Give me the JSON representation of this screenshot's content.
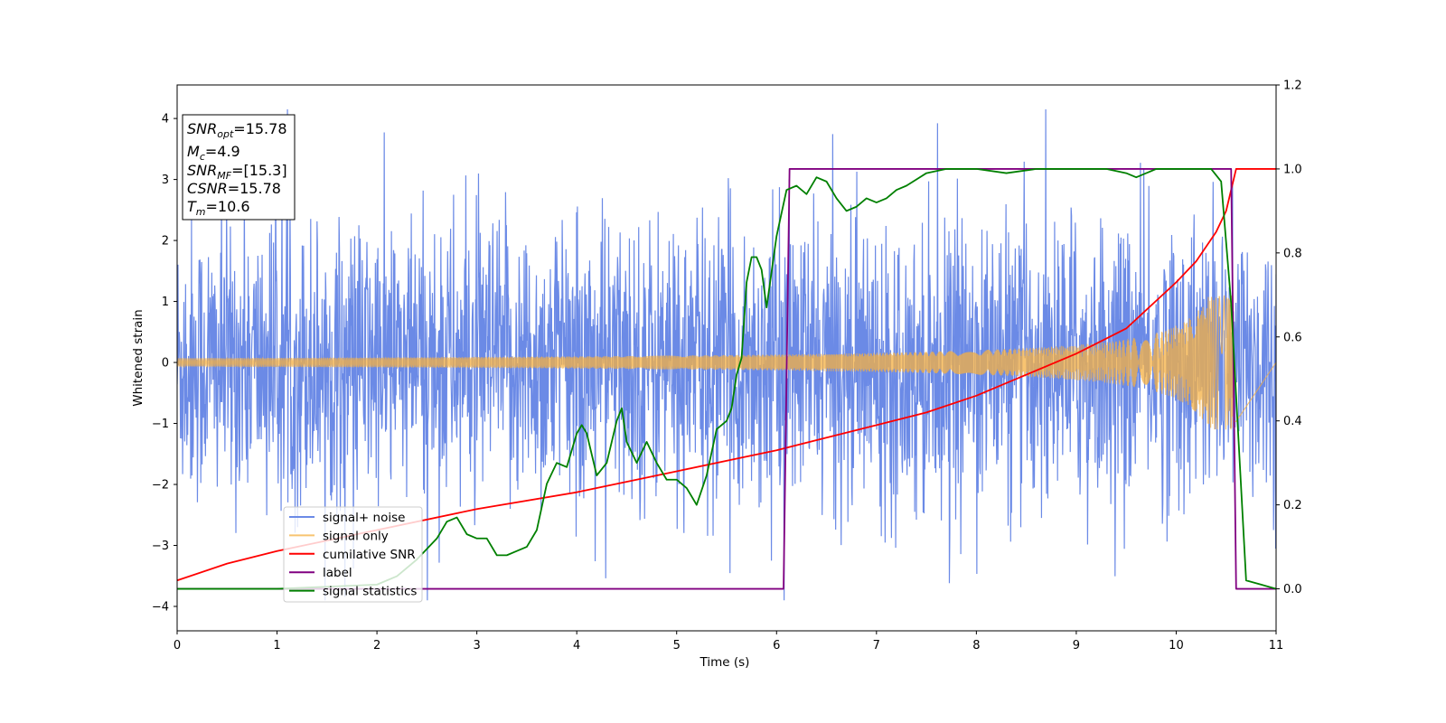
{
  "chart_data": {
    "type": "line",
    "xlabel": "Time (s)",
    "ylabel": "Whitened strain",
    "xlim": [
      0,
      11
    ],
    "ylim_left": [
      -4.4,
      4.55
    ],
    "ylim_right": [
      -0.1,
      1.2
    ],
    "x_ticks": [
      "0",
      "1",
      "2",
      "3",
      "4",
      "5",
      "6",
      "7",
      "8",
      "9",
      "10",
      "11"
    ],
    "y_ticks_left": [
      "−4",
      "−3",
      "−2",
      "−1",
      "0",
      "1",
      "2",
      "3",
      "4"
    ],
    "y_ticks_right": [
      "0.0",
      "0.2",
      "0.4",
      "0.6",
      "0.8",
      "1.0",
      "1.2"
    ],
    "grid": false,
    "legend_position": "lower-left",
    "info_box": {
      "snr_opt": "=15.78",
      "mc": "=4.9",
      "snr_mf": "=[15.3]",
      "csnr": "=15.78",
      "tm": "=10.6"
    },
    "series": [
      {
        "name": "signal+ noise",
        "axis": "left",
        "color": "#6b8ae6",
        "description_values": "noisy whitened strain, roughly within ±2.5 with spikes to ±4",
        "envelope": {
          "t_end": 11.0,
          "typical_amplitude": 1.6,
          "spikes_max": 4.15,
          "spikes_min": -3.9
        }
      },
      {
        "name": "signal only",
        "axis": "left",
        "color": "#f5b041",
        "chirp": {
          "t_start": 0.0,
          "t_merge": 10.6,
          "amp_start": 0.07,
          "amp_end": 1.1
        }
      },
      {
        "name": "cumilative SNR",
        "axis": "right",
        "color": "#ff0000",
        "x": [
          0,
          0.5,
          1,
          2,
          3,
          4,
          5,
          6,
          6.5,
          7,
          7.5,
          8,
          8.5,
          9,
          9.5,
          10,
          10.2,
          10.4,
          10.5,
          10.6,
          11
        ],
        "y": [
          0.02,
          0.06,
          0.09,
          0.14,
          0.19,
          0.23,
          0.28,
          0.33,
          0.36,
          0.39,
          0.42,
          0.46,
          0.51,
          0.56,
          0.62,
          0.73,
          0.78,
          0.85,
          0.9,
          1.0,
          1.0
        ]
      },
      {
        "name": "label",
        "axis": "right",
        "color": "#800080",
        "x": [
          0,
          6.07,
          6.13,
          10.55,
          10.6,
          11
        ],
        "y": [
          0,
          0,
          1,
          1,
          0,
          0
        ]
      },
      {
        "name": "signal statistics",
        "axis": "right",
        "color": "#008000",
        "x": [
          0,
          1.0,
          2.0,
          2.2,
          2.4,
          2.6,
          2.7,
          2.8,
          2.9,
          3.0,
          3.1,
          3.2,
          3.3,
          3.4,
          3.5,
          3.6,
          3.7,
          3.8,
          3.9,
          4.0,
          4.05,
          4.1,
          4.2,
          4.3,
          4.4,
          4.45,
          4.5,
          4.6,
          4.7,
          4.8,
          4.9,
          5.0,
          5.1,
          5.2,
          5.3,
          5.4,
          5.5,
          5.55,
          5.6,
          5.65,
          5.7,
          5.75,
          5.8,
          5.85,
          5.9,
          6.0,
          6.1,
          6.2,
          6.3,
          6.4,
          6.5,
          6.6,
          6.7,
          6.8,
          6.9,
          7.0,
          7.1,
          7.2,
          7.3,
          7.5,
          7.7,
          8.0,
          8.3,
          8.6,
          9.0,
          9.3,
          9.5,
          9.6,
          9.8,
          10.0,
          10.2,
          10.35,
          10.45,
          10.55,
          10.7,
          11.0
        ],
        "y": [
          0.0,
          0.0,
          0.01,
          0.03,
          0.07,
          0.12,
          0.16,
          0.17,
          0.13,
          0.12,
          0.12,
          0.08,
          0.08,
          0.09,
          0.1,
          0.14,
          0.25,
          0.3,
          0.29,
          0.37,
          0.39,
          0.37,
          0.27,
          0.3,
          0.4,
          0.43,
          0.35,
          0.3,
          0.35,
          0.3,
          0.26,
          0.26,
          0.24,
          0.2,
          0.27,
          0.38,
          0.4,
          0.43,
          0.51,
          0.55,
          0.73,
          0.79,
          0.79,
          0.76,
          0.67,
          0.84,
          0.95,
          0.96,
          0.94,
          0.98,
          0.97,
          0.93,
          0.9,
          0.91,
          0.93,
          0.92,
          0.93,
          0.95,
          0.96,
          0.99,
          1.0,
          1.0,
          0.99,
          1.0,
          1.0,
          1.0,
          0.99,
          0.98,
          1.0,
          1.0,
          1.0,
          1.0,
          0.97,
          0.68,
          0.02,
          0.0
        ]
      }
    ]
  }
}
